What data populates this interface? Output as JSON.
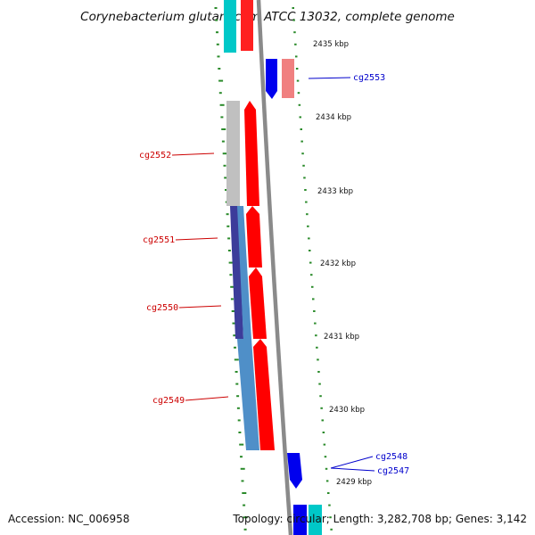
{
  "title": "Corynebacterium glutamicum ATCC 13032, complete genome",
  "footer": {
    "accession": "Accession: NC_006958",
    "topology": "Topology: circular; Length: 3,282,708 bp; Genes: 3,142"
  },
  "colors": {
    "tick": "#2a8a2a",
    "backbone": "#8a8a8a",
    "forward_cds": "#ff0000",
    "reverse_cds": "#0000ee",
    "pink_cds": "#f08080",
    "gray_feature": "#bdbdbd",
    "steelblue_feature": "#4f8fc8",
    "navy_feature": "#3c3c9a",
    "cyan_feature": "#00c8c8",
    "label_red": "#cc0000",
    "label_blue": "#0000cc"
  },
  "scale": {
    "unit_labels": [
      "2435 kbp",
      "2434 kbp",
      "2433 kbp",
      "2432 kbp",
      "2431 kbp",
      "2430 kbp",
      "2429 kbp"
    ]
  },
  "gene_labels": {
    "left": [
      "cg2552",
      "cg2551",
      "cg2550",
      "cg2549"
    ],
    "right": [
      "cg2553",
      "cg2548",
      "cg2547"
    ]
  }
}
